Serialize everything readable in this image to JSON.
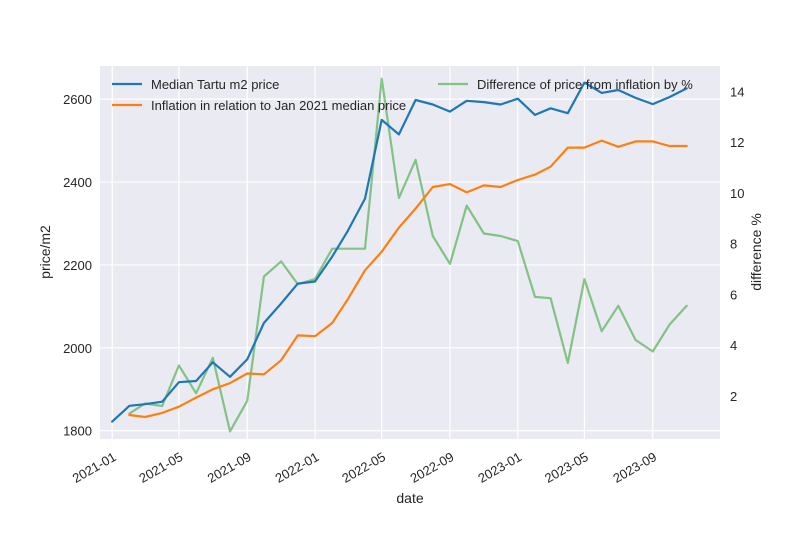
{
  "chart_data": {
    "type": "line",
    "xlabel": "date",
    "ylabel": "price/m2",
    "y2label": "difference %",
    "ylim": [
      1780,
      2680
    ],
    "y2lim": [
      0.3,
      15.0
    ],
    "yticks": [
      1800,
      2000,
      2200,
      2400,
      2600
    ],
    "y2ticks": [
      2,
      4,
      6,
      8,
      10,
      12,
      14
    ],
    "xlim": [
      "2020-12-10",
      "2023-12-31"
    ],
    "xticks": [
      "2021-01",
      "2021-05",
      "2021-09",
      "2022-01",
      "2022-05",
      "2022-09",
      "2023-01",
      "2023-05",
      "2023-09"
    ],
    "grid": true,
    "legend": "top",
    "series": [
      {
        "name": "Median Tartu m2 price",
        "axis": "left",
        "color": "#1f77b4",
        "alpha": 1.0,
        "x": [
          "2021-01",
          "2021-02",
          "2021-03",
          "2021-04",
          "2021-05",
          "2021-06",
          "2021-07",
          "2021-08",
          "2021-09",
          "2021-10",
          "2021-11",
          "2021-12",
          "2022-01",
          "2022-02",
          "2022-03",
          "2022-04",
          "2022-05",
          "2022-06",
          "2022-07",
          "2022-08",
          "2022-09",
          "2022-10",
          "2022-11",
          "2022-12",
          "2023-01",
          "2023-02",
          "2023-03",
          "2023-04",
          "2023-05",
          "2023-06",
          "2023-07",
          "2023-08",
          "2023-09",
          "2023-10",
          "2023-11"
        ],
        "values": [
          1822,
          1860,
          1864,
          1870,
          1917,
          1920,
          1965,
          1930,
          1972,
          2060,
          2107,
          2155,
          2160,
          2220,
          2282,
          2360,
          2550,
          2515,
          2598,
          2587,
          2570,
          2596,
          2593,
          2587,
          2601,
          2562,
          2578,
          2566,
          2640,
          2615,
          2622,
          2603,
          2588,
          2605,
          2626
        ]
      },
      {
        "name": "Inflation in relation to Jan 2021 median price",
        "axis": "left",
        "color": "#ff7f0e",
        "alpha": 1.0,
        "x": [
          "2021-02",
          "2021-03",
          "2021-04",
          "2021-05",
          "2021-06",
          "2021-07",
          "2021-08",
          "2021-09",
          "2021-10",
          "2021-11",
          "2021-12",
          "2022-01",
          "2022-02",
          "2022-03",
          "2022-04",
          "2022-05",
          "2022-06",
          "2022-07",
          "2022-08",
          "2022-09",
          "2022-10",
          "2022-11",
          "2022-12",
          "2023-01",
          "2023-02",
          "2023-03",
          "2023-04",
          "2023-05",
          "2023-06",
          "2023-07",
          "2023-08",
          "2023-09",
          "2023-10",
          "2023-11"
        ],
        "values": [
          1838,
          1833,
          1843,
          1858,
          1880,
          1900,
          1915,
          1938,
          1936,
          1970,
          2030,
          2028,
          2060,
          2117,
          2187,
          2232,
          2290,
          2336,
          2388,
          2395,
          2375,
          2392,
          2388,
          2405,
          2418,
          2437,
          2483,
          2483,
          2500,
          2485,
          2498,
          2498,
          2487,
          2487
        ]
      },
      {
        "name": "Difference of price from inflation by %",
        "axis": "right",
        "color": "#2ca02c",
        "alpha": 0.55,
        "x": [
          "2021-02",
          "2021-03",
          "2021-04",
          "2021-05",
          "2021-06",
          "2021-07",
          "2021-08",
          "2021-09",
          "2021-10",
          "2021-11",
          "2021-12",
          "2022-01",
          "2022-02",
          "2022-03",
          "2022-04",
          "2022-05",
          "2022-06",
          "2022-07",
          "2022-08",
          "2022-09",
          "2022-10",
          "2022-11",
          "2022-12",
          "2023-01",
          "2023-02",
          "2023-03",
          "2023-04",
          "2023-05",
          "2023-06",
          "2023-07",
          "2023-08",
          "2023-09",
          "2023-10",
          "2023-11"
        ],
        "values": [
          1.3,
          1.7,
          1.6,
          3.2,
          2.1,
          3.5,
          0.6,
          1.8,
          6.7,
          7.3,
          6.4,
          6.6,
          7.8,
          7.8,
          7.8,
          14.5,
          9.8,
          11.3,
          8.3,
          7.2,
          9.5,
          8.4,
          8.3,
          8.1,
          5.9,
          5.85,
          3.3,
          6.6,
          4.55,
          5.55,
          4.2,
          3.75,
          4.8,
          5.55
        ]
      }
    ]
  }
}
